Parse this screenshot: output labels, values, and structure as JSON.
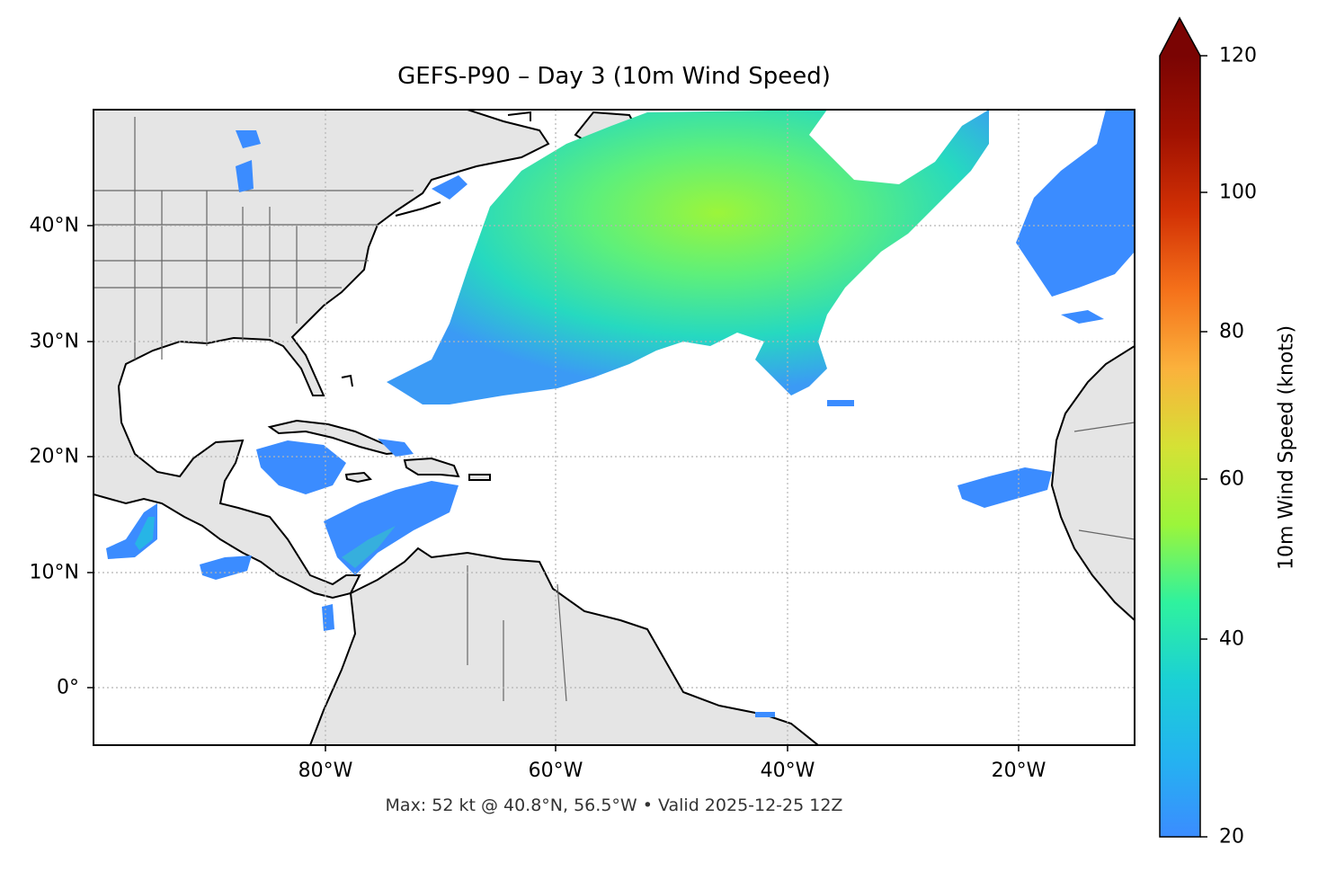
{
  "map": {
    "title": "GEFS-P90 – Day 3 (10m Wind Speed)",
    "footer": "Max: 52 kt @ 40.8°N, 56.5°W • Valid 2025-12-25 12Z",
    "lat_labels": [
      "40°N",
      "30°N",
      "20°N",
      "10°N",
      "0°"
    ],
    "lon_labels": [
      "80°W",
      "60°W",
      "40°W",
      "20°W"
    ],
    "lat_range": [
      -5,
      50
    ],
    "lon_range": [
      -100,
      -10
    ],
    "land_color": "#e5e5e5",
    "coast_color": "#000000",
    "border_color": "#555555",
    "grid_style": "dotted"
  },
  "colorbar": {
    "label": "10m Wind Speed (knots)",
    "ticks": [
      "20",
      "40",
      "60",
      "80",
      "100",
      "120"
    ],
    "range": [
      20,
      120
    ],
    "extend": "max",
    "colormap": "turbo",
    "stops": [
      "#3b8cff",
      "#1bd0d5",
      "#2ff29e",
      "#9cf53a",
      "#d5e135",
      "#fbb13c",
      "#f5711a",
      "#d23105",
      "#a01101",
      "#7a0403"
    ]
  }
}
